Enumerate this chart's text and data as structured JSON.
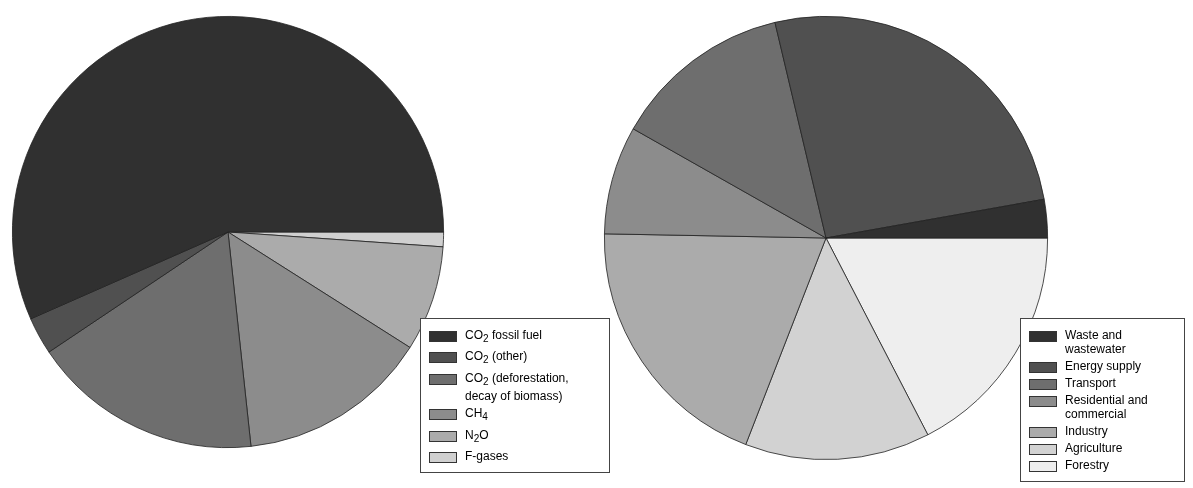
{
  "chart_data": [
    {
      "type": "pie",
      "categories": [
        "CO$_{2}$ fossil fuel",
        "CO$_{2}$ (other)",
        "CO$_{2}$ (deforestation, decay of biomass)",
        "CH$_{4}$",
        "N$_{2}$O",
        "F-gases"
      ],
      "values": [
        56.6,
        2.8,
        17.3,
        14.3,
        7.9,
        1.1
      ],
      "colors": [
        "#303030",
        "#505050",
        "#6e6e6e",
        "#8c8c8c",
        "#ababab",
        "#d0d0d0"
      ],
      "legend": "bottom right"
    },
    {
      "type": "pie",
      "categories": [
        "Waste and wastewater",
        "Energy supply",
        "Transport",
        "Residential and commercial",
        "Industry",
        "Agriculture",
        "Forestry"
      ],
      "values": [
        2.8,
        25.9,
        13.1,
        7.9,
        19.4,
        13.5,
        17.4
      ],
      "colors": [
        "#303030",
        "#505050",
        "#6e6e6e",
        "#8c8c8c",
        "#ababab",
        "#d2d2d2",
        "#eeeeee"
      ],
      "legend": "bottom right"
    }
  ]
}
